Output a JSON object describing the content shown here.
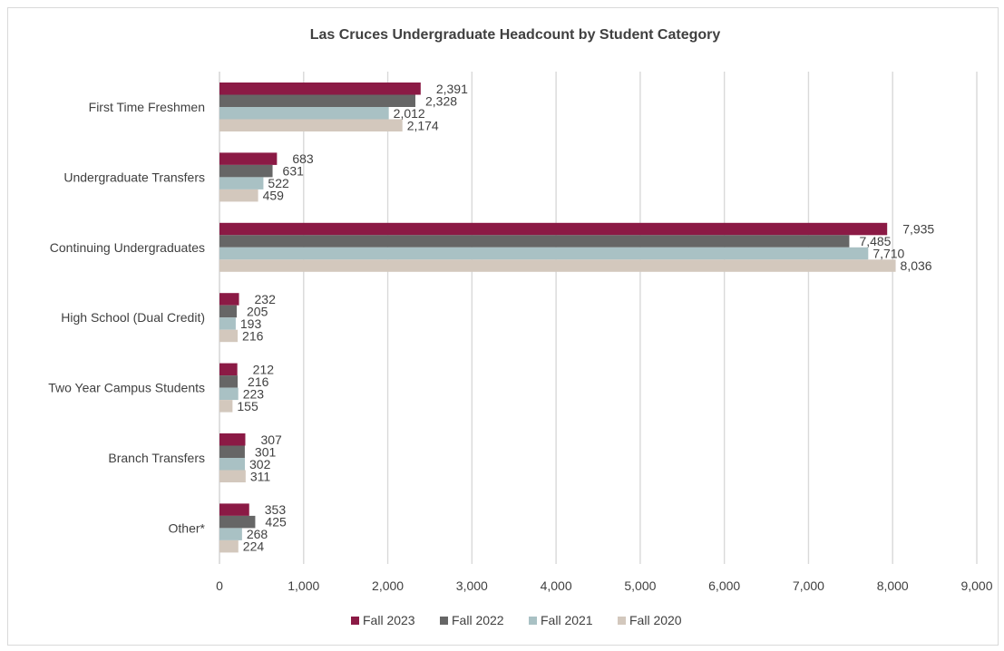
{
  "chart_data": {
    "type": "bar",
    "orientation": "horizontal",
    "title": "Las Cruces Undergraduate Headcount by Student Category",
    "xlabel": "",
    "ylabel": "",
    "categories": [
      "First Time Freshmen",
      "Undergraduate Transfers",
      "Continuing Undergraduates",
      "High School (Dual Credit)",
      "Two Year Campus Students",
      "Branch Transfers",
      "Other*"
    ],
    "series": [
      {
        "name": "Fall 2023",
        "color": "#8b1a45",
        "values": [
          2391,
          683,
          7935,
          232,
          212,
          307,
          353
        ],
        "labels": [
          "2,391",
          "683",
          "7,935",
          "232",
          "212",
          "307",
          "353"
        ]
      },
      {
        "name": "Fall 2022",
        "color": "#666666",
        "values": [
          2328,
          631,
          7485,
          205,
          216,
          301,
          425
        ],
        "labels": [
          "2,328",
          "631",
          "7,485",
          "205",
          "216",
          "301",
          "425"
        ]
      },
      {
        "name": "Fall 2021",
        "color": "#a9c1c4",
        "values": [
          2012,
          522,
          7710,
          193,
          223,
          302,
          268
        ],
        "labels": [
          "2,012",
          "522",
          "7,710",
          "193",
          "223",
          "302",
          "268"
        ]
      },
      {
        "name": "Fall 2020",
        "color": "#d3c8bd",
        "values": [
          2174,
          459,
          8036,
          216,
          155,
          311,
          224
        ],
        "labels": [
          "2,174",
          "459",
          "8,036",
          "216",
          "155",
          "311",
          "224"
        ]
      }
    ],
    "xlim": [
      0,
      9000
    ],
    "xticks": [
      0,
      1000,
      2000,
      3000,
      4000,
      5000,
      6000,
      7000,
      8000,
      9000
    ],
    "xtick_labels": [
      "0",
      "1,000",
      "2,000",
      "3,000",
      "4,000",
      "5,000",
      "6,000",
      "7,000",
      "8,000",
      "9,000"
    ],
    "grid": "vertical",
    "legend_position": "bottom"
  }
}
